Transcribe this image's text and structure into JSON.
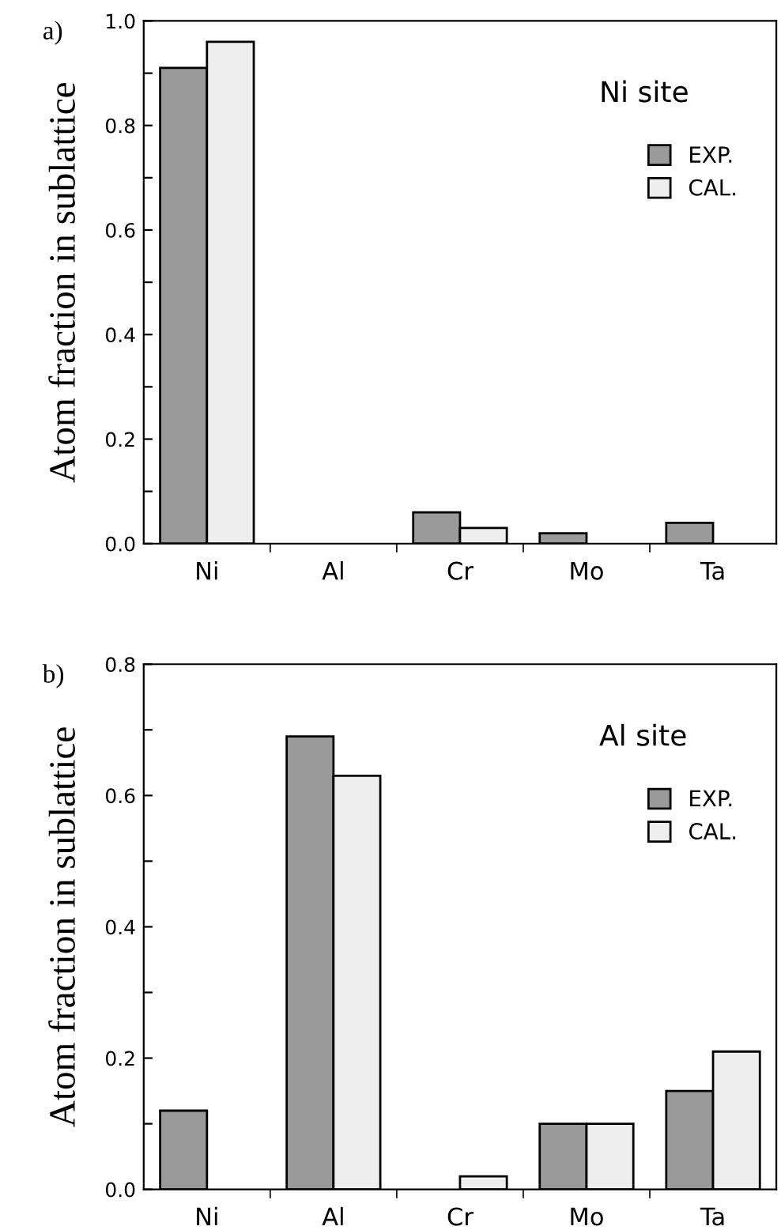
{
  "chart_data": [
    {
      "type": "bar",
      "ylabel": "Atom fraction in sublattice",
      "annotations": [
        "a)",
        "Ni site"
      ],
      "categories": [
        "Ni",
        "Al",
        "Cr",
        "Mo",
        "Ta"
      ],
      "series": [
        {
          "name": "EXP.",
          "color": "#9a9a9a",
          "values": [
            0.91,
            0,
            0.06,
            0.02,
            0.04
          ]
        },
        {
          "name": "CAL.",
          "color": "#eeeeee",
          "values": [
            0.96,
            0,
            0.03,
            0,
            0
          ]
        }
      ],
      "ylim": [
        0,
        1.0
      ],
      "yticks": [
        {
          "value": 0,
          "label": "0.0"
        },
        {
          "value": 0.1,
          "label": null
        },
        0.2,
        {
          "value": 0.3,
          "label": null
        },
        0.4,
        {
          "value": 0.5,
          "label": null
        },
        0.6,
        {
          "value": 0.7,
          "label": null
        },
        0.8,
        {
          "value": 0.9,
          "label": null
        },
        {
          "value": 1,
          "label": "1.0"
        }
      ],
      "grid": false,
      "legend": "top right"
    },
    {
      "type": "bar",
      "ylabel": "Atom fraction in sublattice",
      "annotations": [
        "b)",
        "Al site"
      ],
      "categories": [
        "Ni",
        "Al",
        "Cr",
        "Mo",
        "Ta"
      ],
      "series": [
        {
          "name": "EXP.",
          "color": "#9a9a9a",
          "values": [
            0.12,
            0.69,
            0,
            0.1,
            0.15
          ]
        },
        {
          "name": "CAL.",
          "color": "#eeeeee",
          "values": [
            0,
            0.63,
            0.02,
            0.1,
            0.21
          ]
        }
      ],
      "ylim": [
        0,
        0.8
      ],
      "yticks": [
        {
          "value": 0,
          "label": "0.0"
        },
        {
          "value": 0.1,
          "label": null
        },
        0.2,
        {
          "value": 0.3,
          "label": null
        },
        0.4,
        {
          "value": 0.5,
          "label": null
        },
        0.6,
        {
          "value": 0.7,
          "label": null
        },
        0.8
      ],
      "grid": false,
      "legend": "top right"
    }
  ]
}
